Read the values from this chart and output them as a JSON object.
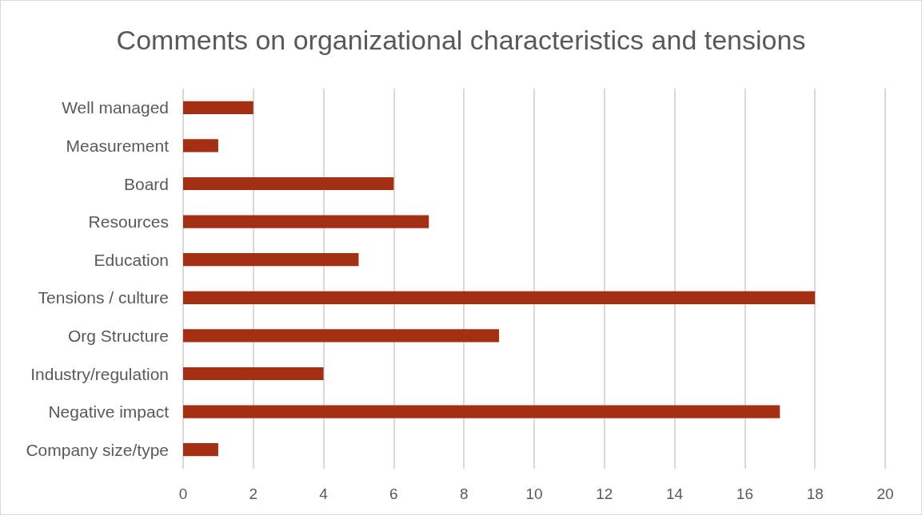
{
  "chart_data": {
    "type": "bar",
    "orientation": "horizontal",
    "title": "Comments on organizational characteristics and tensions",
    "categories": [
      "Well managed",
      "Measurement",
      "Board",
      "Resources",
      "Education",
      "Tensions / culture",
      "Org Structure",
      "Industry/regulation",
      "Negative impact",
      "Company size/type"
    ],
    "values": [
      2,
      1,
      6,
      7,
      5,
      18,
      9,
      4,
      17,
      1
    ],
    "color": "#a52f12",
    "xlim": [
      0,
      20
    ],
    "xticks": [
      0,
      2,
      4,
      6,
      8,
      10,
      12,
      14,
      16,
      18,
      20
    ],
    "grid": "x"
  }
}
